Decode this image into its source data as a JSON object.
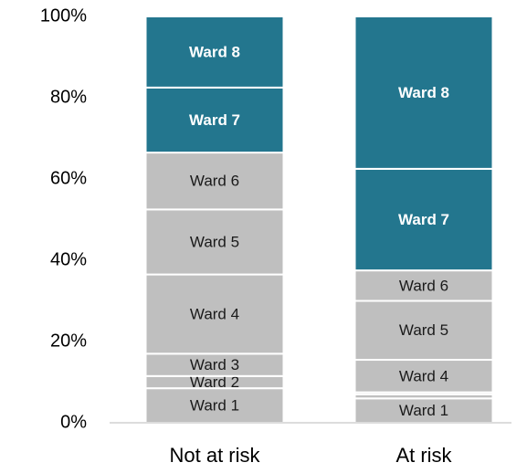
{
  "chart_data": {
    "type": "stacked_bar",
    "categories": [
      "Not at risk",
      "At risk"
    ],
    "series": [
      {
        "name": "Ward 1",
        "color": "#bfbfbf",
        "label_color": "#1a1a1a",
        "values": [
          8.5,
          6
        ]
      },
      {
        "name": "Ward 2",
        "color": "#bfbfbf",
        "label_color": "#1a1a1a",
        "values": [
          3,
          1
        ]
      },
      {
        "name": "Ward 3",
        "color": "#bfbfbf",
        "label_color": "#1a1a1a",
        "values": [
          5.5,
          0.5
        ]
      },
      {
        "name": "Ward 4",
        "color": "#bfbfbf",
        "label_color": "#1a1a1a",
        "values": [
          19.5,
          8
        ]
      },
      {
        "name": "Ward 5",
        "color": "#bfbfbf",
        "label_color": "#1a1a1a",
        "values": [
          16,
          14.5
        ]
      },
      {
        "name": "Ward 6",
        "color": "#bfbfbf",
        "label_color": "#1a1a1a",
        "values": [
          14,
          7.5
        ]
      },
      {
        "name": "Ward 7",
        "color": "#23768e",
        "label_color": "#ffffff",
        "values": [
          16,
          25
        ]
      },
      {
        "name": "Ward 8",
        "color": "#23768e",
        "label_color": "#ffffff",
        "values": [
          17.5,
          37.5
        ]
      }
    ],
    "ylim": [
      0,
      100
    ],
    "yticks": [
      {
        "value": 0,
        "label": "0%"
      },
      {
        "value": 20,
        "label": "20%"
      },
      {
        "value": 40,
        "label": "40%"
      },
      {
        "value": 60,
        "label": "60%"
      },
      {
        "value": 80,
        "label": "80%"
      },
      {
        "value": 100,
        "label": "100%"
      }
    ],
    "grid": false
  }
}
